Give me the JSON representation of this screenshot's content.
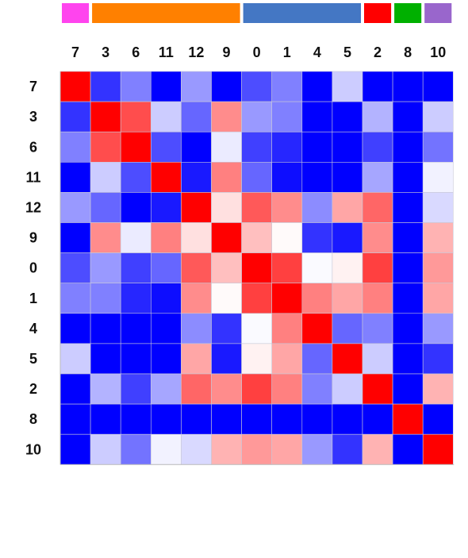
{
  "chart_data": {
    "type": "heatmap",
    "title": "",
    "xlabel": "",
    "ylabel": "",
    "row_labels": [
      "7",
      "3",
      "6",
      "11",
      "12",
      "9",
      "0",
      "1",
      "4",
      "5",
      "2",
      "8",
      "10"
    ],
    "col_labels": [
      "7",
      "3",
      "6",
      "11",
      "12",
      "9",
      "0",
      "1",
      "4",
      "5",
      "2",
      "8",
      "10"
    ],
    "value_range": [
      -1,
      1
    ],
    "colorscale": {
      "low": "#0000ff",
      "mid": "#ffffff",
      "high": "#ff0000"
    },
    "values": [
      [
        1.0,
        -0.8,
        -0.5,
        -1.0,
        -0.4,
        -1.0,
        -0.7,
        -0.5,
        -1.0,
        -0.2,
        -1.0,
        -1.0,
        -1.0
      ],
      [
        -0.8,
        1.0,
        0.7,
        -0.2,
        -0.6,
        0.45,
        -0.4,
        -0.5,
        -1.0,
        -1.0,
        -0.3,
        -1.0,
        -0.2
      ],
      [
        -0.5,
        0.7,
        1.0,
        -0.7,
        -1.0,
        -0.08,
        -0.75,
        -0.85,
        -1.0,
        -1.0,
        -0.75,
        -1.0,
        -0.55
      ],
      [
        -1.0,
        -0.2,
        -0.7,
        1.0,
        -0.9,
        0.5,
        -0.6,
        -0.95,
        -1.0,
        -1.0,
        -0.35,
        -1.0,
        -0.05
      ],
      [
        -0.4,
        -0.6,
        -1.0,
        -0.9,
        1.0,
        0.12,
        0.65,
        0.45,
        -0.45,
        0.35,
        0.6,
        -1.0,
        -0.15
      ],
      [
        -1.0,
        0.45,
        -0.08,
        0.5,
        0.12,
        1.0,
        0.25,
        0.02,
        -0.8,
        -0.9,
        0.45,
        -1.0,
        0.3
      ],
      [
        -0.7,
        -0.4,
        -0.75,
        -0.6,
        0.65,
        0.25,
        1.0,
        0.75,
        -0.02,
        0.05,
        0.75,
        -1.0,
        0.4
      ],
      [
        -0.5,
        -0.5,
        -0.85,
        -0.95,
        0.45,
        0.02,
        0.75,
        1.0,
        0.5,
        0.35,
        0.5,
        -1.0,
        0.35
      ],
      [
        -1.0,
        -1.0,
        -1.0,
        -1.0,
        -0.45,
        -0.8,
        -0.02,
        0.5,
        1.0,
        -0.6,
        -0.5,
        -1.0,
        -0.4
      ],
      [
        -0.2,
        -1.0,
        -1.0,
        -1.0,
        0.35,
        -0.9,
        0.05,
        0.35,
        -0.6,
        1.0,
        -0.2,
        -1.0,
        -0.8
      ],
      [
        -1.0,
        -0.3,
        -0.75,
        -0.35,
        0.6,
        0.45,
        0.75,
        0.5,
        -0.5,
        -0.2,
        1.0,
        -1.0,
        0.3
      ],
      [
        -1.0,
        -1.0,
        -1.0,
        -1.0,
        -1.0,
        -1.0,
        -1.0,
        -1.0,
        -1.0,
        -1.0,
        -1.0,
        1.0,
        -1.0
      ],
      [
        -1.0,
        -0.2,
        -0.55,
        -0.05,
        -0.15,
        0.3,
        0.4,
        0.35,
        -0.4,
        -0.8,
        0.3,
        -1.0,
        1.0
      ]
    ],
    "column_groups": [
      {
        "columns": [
          "7"
        ],
        "color": "#ff44ee"
      },
      {
        "columns": [
          "3",
          "6",
          "11",
          "12",
          "9"
        ],
        "color": "#ff8000"
      },
      {
        "columns": [
          "0",
          "1",
          "4",
          "5"
        ],
        "color": "#4477c4"
      },
      {
        "columns": [
          "2"
        ],
        "color": "#ff0000"
      },
      {
        "columns": [
          "8"
        ],
        "color": "#00b000"
      },
      {
        "columns": [
          "10"
        ],
        "color": "#9966cc"
      }
    ],
    "grid": true,
    "legend": "none"
  }
}
